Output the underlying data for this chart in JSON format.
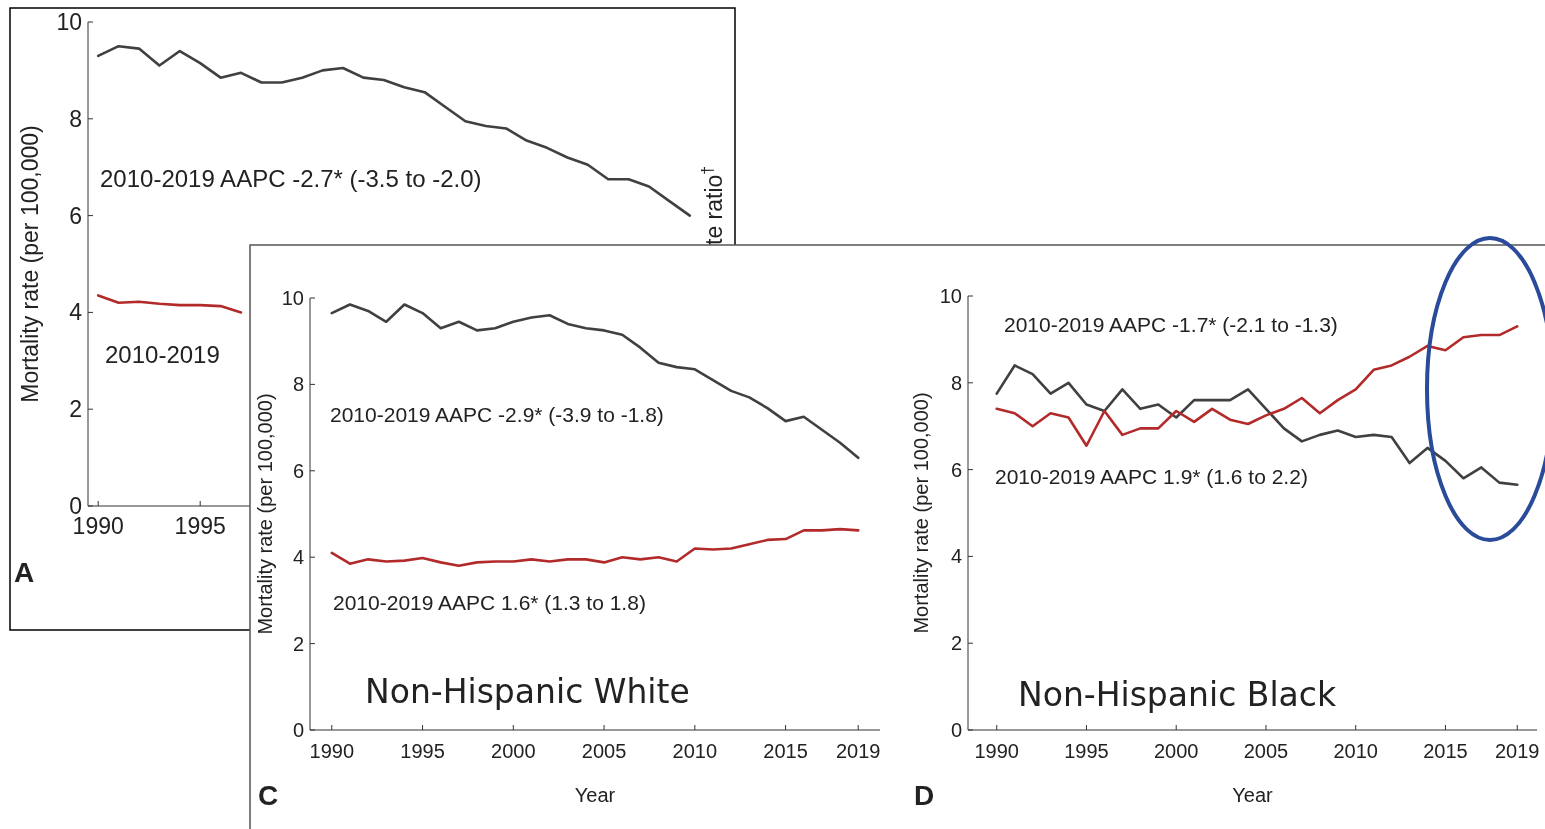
{
  "chart_data": [
    {
      "type": "line",
      "ylabel": "Mortality rate (per 100,000)",
      "y2label": "te ratio$^{†}$",
      "x": [
        1990,
        1991,
        1992,
        1993,
        1994,
        1995,
        1996,
        1997,
        1998,
        1999,
        2000,
        2001,
        2002,
        2003,
        2004,
        2005,
        2006,
        2007,
        2008,
        2009,
        2010,
        2011,
        2012,
        2013,
        2014,
        2015,
        2016,
        2017,
        2018,
        2019
      ],
      "series": [
        {
          "color": "#404040",
          "values": [
            9.3,
            9.5,
            9.45,
            9.1,
            9.4,
            9.15,
            8.85,
            8.95,
            8.75,
            8.75,
            8.85,
            9.0,
            9.05,
            8.85,
            8.8,
            8.65,
            8.55,
            8.25,
            7.95,
            7.85,
            7.8,
            7.55,
            7.4,
            7.2,
            7.05,
            6.75,
            6.75,
            6.6,
            6.3,
            6.0
          ]
        },
        {
          "color": "#b22a2a",
          "values": [
            4.35,
            4.2,
            4.22,
            4.18,
            4.15,
            4.15,
            4.13,
            4.0,
            null,
            null,
            null,
            null,
            null,
            null,
            null,
            null,
            null,
            null,
            null,
            null,
            null,
            null,
            null,
            null,
            null,
            null,
            null,
            null,
            null,
            null
          ]
        }
      ],
      "xlim": [
        1989.5,
        2019.5
      ],
      "xticks": [
        1990,
        1995
      ],
      "ylim": [
        0,
        10
      ],
      "yticks": [
        0,
        2,
        4,
        6,
        8,
        10
      ],
      "grid": false,
      "annotations": [
        "A",
        "2010-2019 AAPC -2.7* (-3.5 to -2.0)",
        "2010-2019"
      ]
    },
    {
      "type": "line",
      "xlabel": "Year",
      "ylabel": "Mortality rate (per 100,000)",
      "x": [
        1990,
        1991,
        1992,
        1993,
        1994,
        1995,
        1996,
        1997,
        1998,
        1999,
        2000,
        2001,
        2002,
        2003,
        2004,
        2005,
        2006,
        2007,
        2008,
        2009,
        2010,
        2011,
        2012,
        2013,
        2014,
        2015,
        2016,
        2017,
        2018,
        2019
      ],
      "series": [
        {
          "color": "#404040",
          "values": [
            9.65,
            9.85,
            9.7,
            9.45,
            9.85,
            9.65,
            9.3,
            9.45,
            9.25,
            9.3,
            9.45,
            9.55,
            9.6,
            9.4,
            9.3,
            9.25,
            9.15,
            8.85,
            8.5,
            8.4,
            8.35,
            8.1,
            7.85,
            7.7,
            7.45,
            7.15,
            7.25,
            6.95,
            6.65,
            6.3
          ]
        },
        {
          "color": "#b22a2a",
          "values": [
            4.1,
            3.85,
            3.95,
            3.9,
            3.92,
            3.98,
            3.88,
            3.8,
            3.88,
            3.9,
            3.9,
            3.95,
            3.9,
            3.95,
            3.95,
            3.88,
            4.0,
            3.95,
            4.0,
            3.9,
            4.2,
            4.18,
            4.2,
            4.3,
            4.4,
            4.42,
            4.62,
            4.62,
            4.65,
            4.62
          ]
        }
      ],
      "xlim": [
        1988.8,
        2020.2
      ],
      "xticks": [
        1990,
        1995,
        2000,
        2005,
        2010,
        2015,
        2019
      ],
      "ylim": [
        0,
        10
      ],
      "yticks": [
        0,
        2,
        4,
        6,
        8,
        10
      ],
      "grid": false,
      "annotations": [
        "C",
        "2010-2019 AAPC -2.9* (-3.9 to -1.8)",
        "2010-2019 AAPC 1.6* (1.3 to 1.8)",
        "Non-Hispanic White"
      ]
    },
    {
      "type": "line",
      "xlabel": "Year",
      "ylabel": "Mortality rate (per 100,000)",
      "x": [
        1990,
        1991,
        1992,
        1993,
        1994,
        1995,
        1996,
        1997,
        1998,
        1999,
        2000,
        2001,
        2002,
        2003,
        2004,
        2005,
        2006,
        2007,
        2008,
        2009,
        2010,
        2011,
        2012,
        2013,
        2014,
        2015,
        2016,
        2017,
        2018,
        2019
      ],
      "series": [
        {
          "color": "#404040",
          "values": [
            7.75,
            8.4,
            8.2,
            7.75,
            8.0,
            7.5,
            7.35,
            7.85,
            7.4,
            7.5,
            7.2,
            7.6,
            7.6,
            7.6,
            7.85,
            7.4,
            6.95,
            6.65,
            6.8,
            6.9,
            6.75,
            6.8,
            6.75,
            6.15,
            6.5,
            6.2,
            5.8,
            6.05,
            5.7,
            5.65
          ]
        },
        {
          "color": "#b22a2a",
          "values": [
            7.4,
            7.3,
            7.0,
            7.3,
            7.2,
            6.55,
            7.35,
            6.8,
            6.95,
            6.95,
            7.35,
            7.1,
            7.4,
            7.15,
            7.05,
            7.25,
            7.4,
            7.65,
            7.3,
            7.6,
            7.85,
            8.3,
            8.4,
            8.6,
            8.85,
            8.75,
            9.05,
            9.1,
            9.1,
            9.3
          ]
        }
      ],
      "xlim": [
        1988.4,
        2020.1
      ],
      "xticks": [
        1990,
        1995,
        2000,
        2005,
        2010,
        2015,
        2019
      ],
      "ylim": [
        0,
        10
      ],
      "yticks": [
        0,
        2,
        4,
        6,
        8,
        10
      ],
      "grid": false,
      "annotations": [
        "D",
        "2010-2019 AAPC -1.7* (-2.1 to -1.3)",
        "2010-2019 AAPC 1.9* (1.6 to 2.2)",
        "Non-Hispanic Black"
      ]
    }
  ]
}
